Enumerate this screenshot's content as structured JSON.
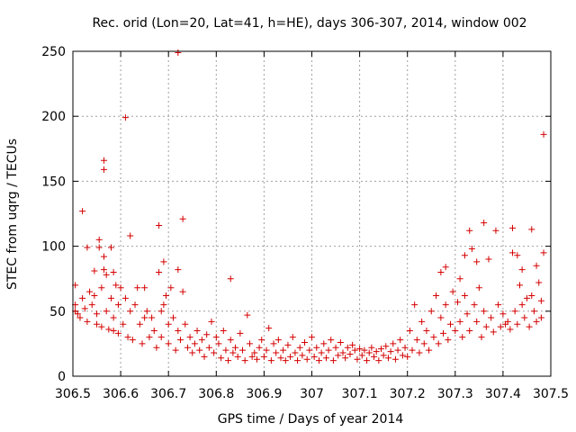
{
  "chart_data": {
    "type": "scatter",
    "title": "Rec. orid (Lon=20, Lat=41, h=HE), days 306-307, 2014, window 002",
    "xlabel": "GPS time / Days of year 2014",
    "ylabel": "STEC from uqrg / TECUs",
    "xlim": [
      306.5,
      307.5
    ],
    "ylim": [
      0,
      250
    ],
    "grid": true,
    "legend": "none",
    "marker": "plus",
    "series_color": "#d40000",
    "x_ticks": [
      {
        "value": 306.5,
        "label": "306.5"
      },
      {
        "value": 306.6,
        "label": "306.6"
      },
      {
        "value": 306.7,
        "label": "306.7"
      },
      {
        "value": 306.8,
        "label": "306.8"
      },
      {
        "value": 306.9,
        "label": "306.9"
      },
      {
        "value": 307.0,
        "label": "307"
      },
      {
        "value": 307.1,
        "label": "307.1"
      },
      {
        "value": 307.2,
        "label": "307.2"
      },
      {
        "value": 307.3,
        "label": "307.3"
      },
      {
        "value": 307.4,
        "label": "307.4"
      },
      {
        "value": 307.5,
        "label": "307.5"
      }
    ],
    "y_ticks": [
      {
        "value": 0,
        "label": "0"
      },
      {
        "value": 50,
        "label": "50"
      },
      {
        "value": 100,
        "label": "100"
      },
      {
        "value": 150,
        "label": "150"
      },
      {
        "value": 200,
        "label": "200"
      },
      {
        "value": 250,
        "label": "250"
      }
    ],
    "series": [
      {
        "name": "STEC",
        "points": [
          [
            306.505,
            70
          ],
          [
            306.505,
            55
          ],
          [
            306.505,
            50
          ],
          [
            306.51,
            48
          ],
          [
            306.515,
            45
          ],
          [
            306.52,
            127
          ],
          [
            306.52,
            60
          ],
          [
            306.525,
            52
          ],
          [
            306.53,
            99
          ],
          [
            306.53,
            42
          ],
          [
            306.535,
            65
          ],
          [
            306.54,
            55
          ],
          [
            306.545,
            81
          ],
          [
            306.545,
            62
          ],
          [
            306.55,
            48
          ],
          [
            306.55,
            40
          ],
          [
            306.555,
            105
          ],
          [
            306.555,
            99
          ],
          [
            306.56,
            68
          ],
          [
            306.56,
            38
          ],
          [
            306.565,
            166
          ],
          [
            306.565,
            159
          ],
          [
            306.565,
            92
          ],
          [
            306.565,
            82
          ],
          [
            306.57,
            78
          ],
          [
            306.57,
            50
          ],
          [
            306.575,
            36
          ],
          [
            306.58,
            99
          ],
          [
            306.58,
            60
          ],
          [
            306.585,
            80
          ],
          [
            306.585,
            45
          ],
          [
            306.585,
            35
          ],
          [
            306.59,
            70
          ],
          [
            306.595,
            55
          ],
          [
            306.595,
            33
          ],
          [
            306.6,
            68
          ],
          [
            306.605,
            40
          ],
          [
            306.61,
            199
          ],
          [
            306.61,
            60
          ],
          [
            306.615,
            30
          ],
          [
            306.62,
            108
          ],
          [
            306.62,
            50
          ],
          [
            306.625,
            28
          ],
          [
            306.63,
            55
          ],
          [
            306.635,
            68
          ],
          [
            306.64,
            40
          ],
          [
            306.645,
            25
          ],
          [
            306.65,
            68
          ],
          [
            306.65,
            45
          ],
          [
            306.655,
            50
          ],
          [
            306.66,
            30
          ],
          [
            306.665,
            45
          ],
          [
            306.67,
            35
          ],
          [
            306.675,
            22
          ],
          [
            306.68,
            116
          ],
          [
            306.68,
            80
          ],
          [
            306.685,
            50
          ],
          [
            306.685,
            30
          ],
          [
            306.69,
            88
          ],
          [
            306.69,
            55
          ],
          [
            306.695,
            62
          ],
          [
            306.7,
            40
          ],
          [
            306.7,
            25
          ],
          [
            306.705,
            68
          ],
          [
            306.71,
            45
          ],
          [
            306.715,
            20
          ],
          [
            306.72,
            249
          ],
          [
            306.72,
            82
          ],
          [
            306.72,
            35
          ],
          [
            306.725,
            28
          ],
          [
            306.73,
            121
          ],
          [
            306.73,
            65
          ],
          [
            306.735,
            40
          ],
          [
            306.74,
            22
          ],
          [
            306.745,
            30
          ],
          [
            306.75,
            18
          ],
          [
            306.755,
            25
          ],
          [
            306.76,
            35
          ],
          [
            306.765,
            20
          ],
          [
            306.77,
            28
          ],
          [
            306.775,
            15
          ],
          [
            306.78,
            32
          ],
          [
            306.785,
            22
          ],
          [
            306.79,
            42
          ],
          [
            306.795,
            18
          ],
          [
            306.8,
            30
          ],
          [
            306.805,
            25
          ],
          [
            306.81,
            14
          ],
          [
            306.815,
            35
          ],
          [
            306.82,
            20
          ],
          [
            306.825,
            12
          ],
          [
            306.83,
            75
          ],
          [
            306.83,
            28
          ],
          [
            306.835,
            18
          ],
          [
            306.84,
            22
          ],
          [
            306.845,
            15
          ],
          [
            306.85,
            33
          ],
          [
            306.855,
            20
          ],
          [
            306.86,
            12
          ],
          [
            306.865,
            47
          ],
          [
            306.87,
            25
          ],
          [
            306.875,
            15
          ],
          [
            306.88,
            18
          ],
          [
            306.885,
            13
          ],
          [
            306.89,
            22
          ],
          [
            306.895,
            28
          ],
          [
            306.9,
            15
          ],
          [
            306.905,
            20
          ],
          [
            306.91,
            37
          ],
          [
            306.915,
            12
          ],
          [
            306.92,
            25
          ],
          [
            306.925,
            18
          ],
          [
            306.93,
            28
          ],
          [
            306.935,
            14
          ],
          [
            306.94,
            20
          ],
          [
            306.945,
            12
          ],
          [
            306.95,
            24
          ],
          [
            306.955,
            15
          ],
          [
            306.96,
            30
          ],
          [
            306.965,
            18
          ],
          [
            306.97,
            12
          ],
          [
            306.975,
            22
          ],
          [
            306.98,
            16
          ],
          [
            306.985,
            26
          ],
          [
            306.99,
            13
          ],
          [
            306.995,
            20
          ],
          [
            307.0,
            30
          ],
          [
            307.005,
            15
          ],
          [
            307.01,
            22
          ],
          [
            307.015,
            12
          ],
          [
            307.02,
            18
          ],
          [
            307.025,
            25
          ],
          [
            307.03,
            14
          ],
          [
            307.035,
            20
          ],
          [
            307.04,
            28
          ],
          [
            307.045,
            12
          ],
          [
            307.05,
            22
          ],
          [
            307.055,
            16
          ],
          [
            307.06,
            26
          ],
          [
            307.065,
            18
          ],
          [
            307.07,
            14
          ],
          [
            307.075,
            22
          ],
          [
            307.08,
            17
          ],
          [
            307.085,
            24
          ],
          [
            307.09,
            20
          ],
          [
            307.095,
            13
          ],
          [
            307.1,
            21
          ],
          [
            307.105,
            16
          ],
          [
            307.11,
            20
          ],
          [
            307.115,
            12
          ],
          [
            307.12,
            18
          ],
          [
            307.125,
            22
          ],
          [
            307.13,
            15
          ],
          [
            307.135,
            19
          ],
          [
            307.14,
            12
          ],
          [
            307.145,
            21
          ],
          [
            307.15,
            16
          ],
          [
            307.155,
            23
          ],
          [
            307.16,
            14
          ],
          [
            307.165,
            19
          ],
          [
            307.17,
            25
          ],
          [
            307.175,
            13
          ],
          [
            307.18,
            20
          ],
          [
            307.185,
            28
          ],
          [
            307.19,
            16
          ],
          [
            307.195,
            22
          ],
          [
            307.2,
            15
          ],
          [
            307.205,
            35
          ],
          [
            307.21,
            20
          ],
          [
            307.215,
            55
          ],
          [
            307.22,
            28
          ],
          [
            307.225,
            18
          ],
          [
            307.23,
            42
          ],
          [
            307.235,
            25
          ],
          [
            307.24,
            35
          ],
          [
            307.245,
            20
          ],
          [
            307.25,
            50
          ],
          [
            307.255,
            30
          ],
          [
            307.26,
            62
          ],
          [
            307.265,
            25
          ],
          [
            307.27,
            80
          ],
          [
            307.27,
            45
          ],
          [
            307.275,
            33
          ],
          [
            307.28,
            84
          ],
          [
            307.28,
            55
          ],
          [
            307.285,
            28
          ],
          [
            307.29,
            40
          ],
          [
            307.295,
            65
          ],
          [
            307.3,
            35
          ],
          [
            307.305,
            57
          ],
          [
            307.31,
            75
          ],
          [
            307.31,
            42
          ],
          [
            307.315,
            30
          ],
          [
            307.32,
            93
          ],
          [
            307.32,
            62
          ],
          [
            307.325,
            48
          ],
          [
            307.33,
            112
          ],
          [
            307.33,
            35
          ],
          [
            307.335,
            98
          ],
          [
            307.34,
            55
          ],
          [
            307.345,
            88
          ],
          [
            307.345,
            42
          ],
          [
            307.35,
            68
          ],
          [
            307.355,
            30
          ],
          [
            307.36,
            118
          ],
          [
            307.36,
            50
          ],
          [
            307.365,
            38
          ],
          [
            307.37,
            90
          ],
          [
            307.375,
            45
          ],
          [
            307.38,
            34
          ],
          [
            307.385,
            112
          ],
          [
            307.39,
            55
          ],
          [
            307.395,
            38
          ],
          [
            307.4,
            48
          ],
          [
            307.405,
            40
          ],
          [
            307.41,
            42
          ],
          [
            307.415,
            36
          ],
          [
            307.42,
            95
          ],
          [
            307.42,
            114
          ],
          [
            307.425,
            50
          ],
          [
            307.43,
            93
          ],
          [
            307.43,
            40
          ],
          [
            307.435,
            70
          ],
          [
            307.44,
            82
          ],
          [
            307.44,
            55
          ],
          [
            307.445,
            45
          ],
          [
            307.45,
            60
          ],
          [
            307.455,
            38
          ],
          [
            307.46,
            113
          ],
          [
            307.46,
            62
          ],
          [
            307.465,
            50
          ],
          [
            307.47,
            85
          ],
          [
            307.47,
            42
          ],
          [
            307.475,
            72
          ],
          [
            307.48,
            58
          ],
          [
            307.48,
            45
          ],
          [
            307.485,
            186
          ],
          [
            307.485,
            95
          ]
        ]
      }
    ]
  }
}
